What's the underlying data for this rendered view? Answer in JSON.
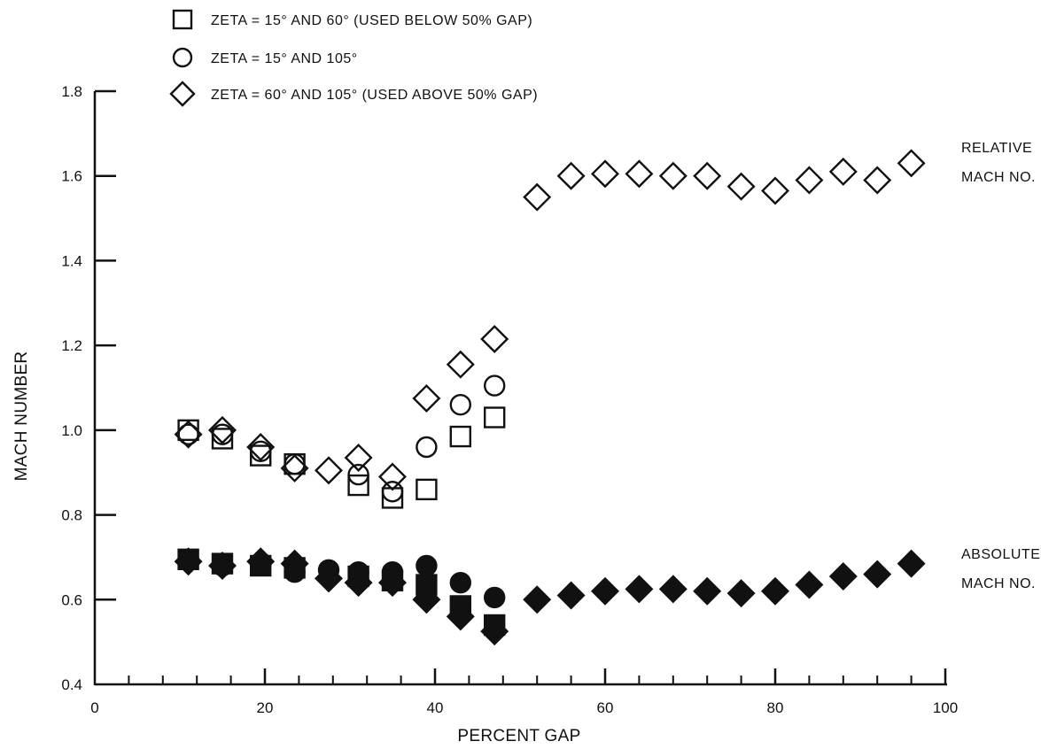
{
  "chart_data": {
    "type": "scatter",
    "title": "",
    "xlabel": "PERCENT GAP",
    "ylabel": "MACH NUMBER",
    "xlim": [
      0,
      100
    ],
    "ylim": [
      0.4,
      1.8
    ],
    "x_ticks": [
      0,
      20,
      40,
      60,
      80,
      100
    ],
    "x_tick_labels": [
      "0",
      "20",
      "40",
      "60",
      "80",
      "100"
    ],
    "y_ticks": [
      0.4,
      0.6,
      0.8,
      1.0,
      1.2,
      1.4,
      1.6,
      1.8
    ],
    "y_tick_labels": [
      "0.4",
      "0.6",
      "0.8",
      "1.0",
      "1.2",
      "1.4",
      "1.6",
      "1.8"
    ],
    "grid": false,
    "legend_position": "top-left",
    "legend": [
      {
        "marker": "square",
        "label": "ZETA = 15° AND 60° (USED BELOW 50% GAP)"
      },
      {
        "marker": "circle",
        "label": "ZETA = 15° AND 105°"
      },
      {
        "marker": "diamond",
        "label": "ZETA = 60° AND 105° (USED ABOVE 50% GAP)"
      }
    ],
    "annotations": [
      {
        "lines": [
          "RELATIVE",
          "MACH NO."
        ],
        "near_x": 96,
        "near_y": 1.6
      },
      {
        "lines": [
          "ABSOLUTE",
          "MACH NO."
        ],
        "near_x": 96,
        "near_y": 0.65
      }
    ],
    "series": [
      {
        "group": "relative",
        "marker": "square",
        "filled": false,
        "x": [
          11,
          15,
          19.5,
          23.5,
          31,
          35,
          39,
          43,
          47
        ],
        "y": [
          1.0,
          0.98,
          0.94,
          0.92,
          0.87,
          0.84,
          0.86,
          0.985,
          1.03
        ]
      },
      {
        "group": "relative",
        "marker": "circle",
        "filled": false,
        "x": [
          11,
          15,
          19.5,
          23.5,
          31,
          35,
          39,
          43,
          47
        ],
        "y": [
          0.99,
          0.99,
          0.95,
          0.92,
          0.895,
          0.855,
          0.96,
          1.06,
          1.105
        ]
      },
      {
        "group": "relative",
        "marker": "diamond",
        "filled": false,
        "x": [
          11,
          15,
          19.5,
          23.5,
          27.5,
          31,
          35,
          39,
          43,
          47,
          52,
          56,
          60,
          64,
          68,
          72,
          76,
          80,
          84,
          88,
          92,
          96
        ],
        "y": [
          0.99,
          1.0,
          0.96,
          0.91,
          0.905,
          0.935,
          0.89,
          1.075,
          1.155,
          1.215,
          1.55,
          1.6,
          1.605,
          1.605,
          1.6,
          1.6,
          1.575,
          1.565,
          1.59,
          1.61,
          1.59,
          1.63
        ]
      },
      {
        "group": "absolute",
        "marker": "square",
        "filled": true,
        "x": [
          11,
          15,
          19.5,
          23.5,
          31,
          35,
          39,
          43,
          47
        ],
        "y": [
          0.695,
          0.685,
          0.68,
          0.675,
          0.655,
          0.645,
          0.635,
          0.585,
          0.54
        ]
      },
      {
        "group": "absolute",
        "marker": "circle",
        "filled": true,
        "x": [
          11,
          15,
          19.5,
          23.5,
          27.5,
          31,
          35,
          39,
          43,
          47
        ],
        "y": [
          0.695,
          0.68,
          0.685,
          0.665,
          0.67,
          0.665,
          0.665,
          0.68,
          0.64,
          0.605
        ]
      },
      {
        "group": "absolute",
        "marker": "diamond",
        "filled": true,
        "x": [
          11,
          15,
          19.5,
          23.5,
          27.5,
          31,
          35,
          39,
          43,
          47,
          52,
          56,
          60,
          64,
          68,
          72,
          76,
          80,
          84,
          88,
          92,
          96
        ],
        "y": [
          0.69,
          0.68,
          0.69,
          0.685,
          0.65,
          0.64,
          0.64,
          0.6,
          0.56,
          0.525,
          0.6,
          0.61,
          0.62,
          0.625,
          0.625,
          0.62,
          0.615,
          0.62,
          0.635,
          0.655,
          0.66,
          0.685
        ]
      }
    ]
  }
}
